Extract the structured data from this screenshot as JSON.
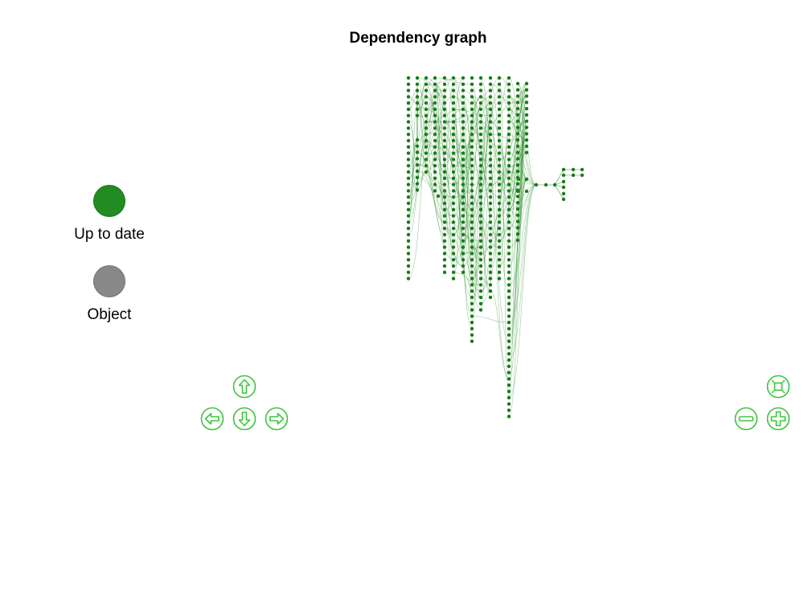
{
  "title": "Dependency graph",
  "legend": [
    {
      "label": "Up to date",
      "color": "#228b22"
    },
    {
      "label": "Object",
      "color": "#888888"
    }
  ],
  "node_color": "#1a7a1a",
  "edge_color": "#228b22",
  "controls": {
    "color": "#3cc43c",
    "pan": [
      "up-arrow-icon",
      "left-arrow-icon",
      "down-arrow-icon",
      "right-arrow-icon"
    ],
    "zoom": [
      "zoom-fit-icon",
      "zoom-out-icon",
      "zoom-in-icon"
    ]
  }
}
